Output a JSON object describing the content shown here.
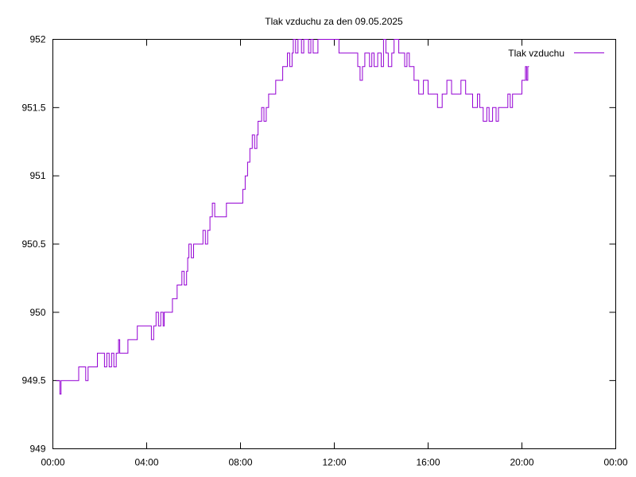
{
  "chart_data": {
    "type": "line",
    "title": "Tlak vzduchu za den 09.05.2025",
    "xlabel": "",
    "ylabel": "",
    "xlim_hours": [
      0,
      24
    ],
    "ylim": [
      949,
      952
    ],
    "grid": false,
    "legend": {
      "position": "top-right",
      "entries": [
        "Tlak vzduchu"
      ]
    },
    "x_ticks": [
      {
        "hour": 0,
        "label": "00:00"
      },
      {
        "hour": 4,
        "label": "04:00"
      },
      {
        "hour": 8,
        "label": "08:00"
      },
      {
        "hour": 12,
        "label": "12:00"
      },
      {
        "hour": 16,
        "label": "16:00"
      },
      {
        "hour": 20,
        "label": "20:00"
      },
      {
        "hour": 24,
        "label": "00:00"
      }
    ],
    "y_ticks": [
      {
        "value": 949,
        "label": "949"
      },
      {
        "value": 949.5,
        "label": "949.5"
      },
      {
        "value": 950,
        "label": "950"
      },
      {
        "value": 950.5,
        "label": "950.5"
      },
      {
        "value": 951,
        "label": "951"
      },
      {
        "value": 951.5,
        "label": "951.5"
      },
      {
        "value": 952,
        "label": "952"
      }
    ],
    "series": [
      {
        "name": "Tlak vzduchu",
        "color": "#9400d3",
        "points": [
          [
            0.15,
            949.5
          ],
          [
            0.3,
            949.4
          ],
          [
            0.35,
            949.5
          ],
          [
            0.6,
            949.5
          ],
          [
            1.0,
            949.5
          ],
          [
            1.1,
            949.6
          ],
          [
            1.4,
            949.5
          ],
          [
            1.5,
            949.6
          ],
          [
            1.8,
            949.6
          ],
          [
            1.9,
            949.7
          ],
          [
            2.1,
            949.7
          ],
          [
            2.2,
            949.6
          ],
          [
            2.3,
            949.7
          ],
          [
            2.4,
            949.6
          ],
          [
            2.5,
            949.7
          ],
          [
            2.6,
            949.6
          ],
          [
            2.7,
            949.7
          ],
          [
            2.8,
            949.8
          ],
          [
            2.85,
            949.7
          ],
          [
            3.0,
            949.7
          ],
          [
            3.2,
            949.8
          ],
          [
            3.5,
            949.8
          ],
          [
            3.6,
            949.9
          ],
          [
            4.0,
            949.9
          ],
          [
            4.1,
            949.9
          ],
          [
            4.2,
            949.8
          ],
          [
            4.3,
            949.9
          ],
          [
            4.4,
            950.0
          ],
          [
            4.5,
            949.9
          ],
          [
            4.6,
            950.0
          ],
          [
            4.7,
            949.9
          ],
          [
            4.75,
            950.0
          ],
          [
            4.9,
            950.0
          ],
          [
            5.1,
            950.1
          ],
          [
            5.3,
            950.2
          ],
          [
            5.5,
            950.3
          ],
          [
            5.6,
            950.2
          ],
          [
            5.7,
            950.3
          ],
          [
            5.75,
            950.4
          ],
          [
            5.8,
            950.5
          ],
          [
            5.9,
            950.4
          ],
          [
            6.0,
            950.5
          ],
          [
            6.3,
            950.5
          ],
          [
            6.4,
            950.6
          ],
          [
            6.5,
            950.5
          ],
          [
            6.6,
            950.6
          ],
          [
            6.7,
            950.7
          ],
          [
            6.8,
            950.8
          ],
          [
            6.9,
            950.7
          ],
          [
            7.0,
            950.7
          ],
          [
            7.3,
            950.7
          ],
          [
            7.4,
            950.8
          ],
          [
            8.0,
            950.8
          ],
          [
            8.1,
            950.9
          ],
          [
            8.2,
            951.0
          ],
          [
            8.3,
            951.1
          ],
          [
            8.4,
            951.2
          ],
          [
            8.5,
            951.3
          ],
          [
            8.6,
            951.2
          ],
          [
            8.7,
            951.3
          ],
          [
            8.75,
            951.4
          ],
          [
            8.9,
            951.5
          ],
          [
            9.0,
            951.4
          ],
          [
            9.1,
            951.5
          ],
          [
            9.2,
            951.6
          ],
          [
            9.4,
            951.6
          ],
          [
            9.5,
            951.7
          ],
          [
            9.7,
            951.7
          ],
          [
            9.8,
            951.8
          ],
          [
            9.9,
            951.8
          ],
          [
            10.0,
            951.9
          ],
          [
            10.1,
            951.8
          ],
          [
            10.2,
            951.9
          ],
          [
            10.25,
            952.0
          ],
          [
            10.35,
            951.9
          ],
          [
            10.45,
            952.0
          ],
          [
            10.6,
            951.9
          ],
          [
            10.7,
            952.0
          ],
          [
            10.9,
            951.9
          ],
          [
            11.0,
            952.0
          ],
          [
            11.1,
            951.9
          ],
          [
            11.3,
            952.0
          ],
          [
            12.2,
            951.9
          ],
          [
            12.9,
            951.9
          ],
          [
            13.0,
            951.8
          ],
          [
            13.1,
            951.7
          ],
          [
            13.2,
            951.8
          ],
          [
            13.3,
            951.9
          ],
          [
            13.5,
            951.8
          ],
          [
            13.6,
            951.9
          ],
          [
            13.7,
            951.8
          ],
          [
            13.85,
            951.9
          ],
          [
            14.0,
            951.8
          ],
          [
            14.1,
            952.0
          ],
          [
            14.2,
            951.9
          ],
          [
            14.3,
            951.8
          ],
          [
            14.45,
            951.9
          ],
          [
            14.55,
            952.0
          ],
          [
            14.75,
            951.9
          ],
          [
            15.0,
            951.8
          ],
          [
            15.1,
            951.9
          ],
          [
            15.2,
            951.8
          ],
          [
            15.4,
            951.7
          ],
          [
            15.6,
            951.6
          ],
          [
            15.8,
            951.7
          ],
          [
            16.0,
            951.6
          ],
          [
            16.4,
            951.5
          ],
          [
            16.6,
            951.6
          ],
          [
            16.8,
            951.7
          ],
          [
            17.0,
            951.6
          ],
          [
            17.4,
            951.7
          ],
          [
            17.6,
            951.6
          ],
          [
            17.9,
            951.5
          ],
          [
            18.1,
            951.6
          ],
          [
            18.2,
            951.5
          ],
          [
            18.35,
            951.4
          ],
          [
            18.5,
            951.5
          ],
          [
            18.6,
            951.4
          ],
          [
            18.75,
            951.5
          ],
          [
            18.9,
            951.4
          ],
          [
            19.0,
            951.5
          ],
          [
            19.3,
            951.5
          ],
          [
            19.4,
            951.6
          ],
          [
            19.5,
            951.5
          ],
          [
            19.6,
            951.6
          ],
          [
            19.9,
            951.6
          ],
          [
            20.0,
            951.7
          ],
          [
            20.15,
            951.8
          ],
          [
            20.2,
            951.7
          ],
          [
            20.25,
            951.8
          ],
          [
            20.3,
            951.8
          ]
        ]
      }
    ]
  }
}
